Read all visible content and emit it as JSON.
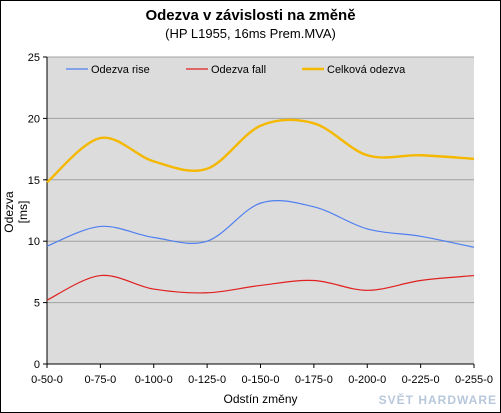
{
  "chart_data": {
    "type": "line",
    "title": "Odezva v závislosti na změně",
    "subtitle": "(HP L1955, 16ms Prem.MVA)",
    "xlabel": "Odstín změny",
    "ylabel": "Odezva [ms]",
    "categories": [
      "0-50-0",
      "0-75-0",
      "0-100-0",
      "0-125-0",
      "0-150-0",
      "0-175-0",
      "0-200-0",
      "0-225-0",
      "0-255-0"
    ],
    "ylim": [
      0,
      25
    ],
    "yticks": [
      0,
      5,
      10,
      15,
      20,
      25
    ],
    "grid": true,
    "legend_position": "top",
    "plot_background": "#dcdcdc",
    "series": [
      {
        "name": "Odezva rise",
        "color": "#4f7ff0",
        "values": [
          9.6,
          11.2,
          10.3,
          10.0,
          13.1,
          12.8,
          11.0,
          10.4,
          9.5
        ]
      },
      {
        "name": "Odezva fall",
        "color": "#e02020",
        "values": [
          5.2,
          7.2,
          6.1,
          5.8,
          6.4,
          6.8,
          6.0,
          6.8,
          7.2
        ]
      },
      {
        "name": "Celková odezva",
        "color": "#f5b800",
        "values": [
          14.8,
          18.4,
          16.5,
          15.9,
          19.4,
          19.6,
          17.0,
          17.0,
          16.7
        ]
      }
    ]
  },
  "watermark": "SVĚT HARDWARE"
}
